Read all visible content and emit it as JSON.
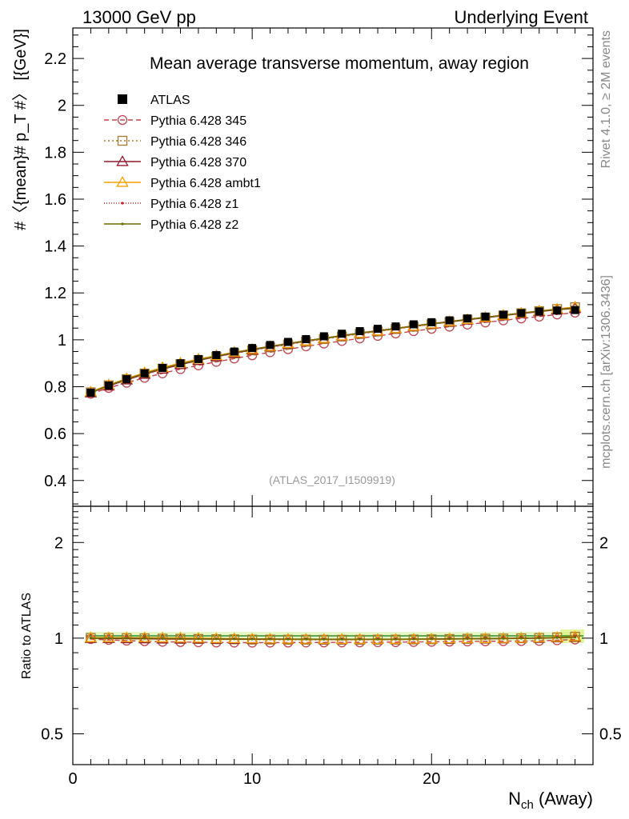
{
  "header": {
    "left": "13000 GeV pp",
    "right": "Underlying Event"
  },
  "side_labels": {
    "top": "Rivet 4.1.0, ≥ 2M events",
    "bottom": "mcplots.cern.ch [arXiv:1306.3436]"
  },
  "chart_data": {
    "type": "line",
    "title": "Mean average transverse momentum, away region",
    "watermark": "(ATLAS_2017_I1509919)",
    "xlabel": "N_ch (Away)",
    "ylabel": "#〈{mean}# p_T #〉 [{GeV}]",
    "ratio_ylabel": "Ratio to ATLAS",
    "xlim": [
      0,
      29
    ],
    "ylim": [
      0.29,
      2.33
    ],
    "ratio_ylim": [
      0.4,
      2.6
    ],
    "x_ticks": [
      0,
      10,
      20
    ],
    "y_ticks": [
      0.4,
      0.6,
      0.8,
      1,
      1.2,
      1.4,
      1.6,
      1.8,
      2,
      2.2
    ],
    "ratio_ticks": [
      0.5,
      1,
      2
    ],
    "x": [
      1,
      2,
      3,
      4,
      5,
      6,
      7,
      8,
      9,
      10,
      11,
      12,
      13,
      14,
      15,
      16,
      17,
      18,
      19,
      20,
      21,
      22,
      23,
      24,
      25,
      26,
      27,
      28
    ],
    "reference": {
      "name": "ATLAS",
      "values": [
        0.775,
        0.805,
        0.832,
        0.857,
        0.88,
        0.9,
        0.918,
        0.935,
        0.95,
        0.965,
        0.978,
        0.991,
        1.003,
        1.015,
        1.026,
        1.037,
        1.047,
        1.057,
        1.066,
        1.075,
        1.083,
        1.091,
        1.099,
        1.107,
        1.114,
        1.121,
        1.125,
        1.127
      ],
      "marker": "filled-square",
      "color": "#000000"
    },
    "series": [
      {
        "name": "Pythia 6.428 345",
        "color": "#c2444f",
        "dash": "6,4",
        "marker": "open-circle",
        "values": [
          0.77,
          0.795,
          0.817,
          0.838,
          0.857,
          0.875,
          0.891,
          0.906,
          0.92,
          0.934,
          0.947,
          0.96,
          0.972,
          0.984,
          0.995,
          1.006,
          1.017,
          1.027,
          1.037,
          1.047,
          1.056,
          1.065,
          1.074,
          1.083,
          1.091,
          1.099,
          1.108,
          1.116
        ]
      },
      {
        "name": "Pythia 6.428 346",
        "color": "#a6782a",
        "dash": "2,3",
        "marker": "open-square",
        "values": [
          0.776,
          0.806,
          0.832,
          0.856,
          0.877,
          0.896,
          0.913,
          0.928,
          0.942,
          0.955,
          0.968,
          0.98,
          0.992,
          1.003,
          1.014,
          1.025,
          1.036,
          1.046,
          1.056,
          1.066,
          1.076,
          1.086,
          1.095,
          1.104,
          1.113,
          1.122,
          1.131,
          1.139
        ]
      },
      {
        "name": "Pythia 6.428 370",
        "color": "#8e1a2b",
        "dash": "",
        "marker": "open-triangle",
        "values": [
          0.774,
          0.803,
          0.829,
          0.853,
          0.875,
          0.894,
          0.912,
          0.928,
          0.943,
          0.957,
          0.97,
          0.982,
          0.994,
          1.005,
          1.016,
          1.027,
          1.037,
          1.047,
          1.057,
          1.067,
          1.076,
          1.085,
          1.094,
          1.103,
          1.112,
          1.12,
          1.128,
          1.134
        ]
      },
      {
        "name": "Pythia 6.428 ambt1",
        "color": "#f5a000",
        "dash": "",
        "marker": "open-triangle",
        "values": [
          0.778,
          0.808,
          0.835,
          0.86,
          0.882,
          0.901,
          0.918,
          0.933,
          0.947,
          0.96,
          0.972,
          0.984,
          0.995,
          1.006,
          1.017,
          1.028,
          1.038,
          1.048,
          1.058,
          1.068,
          1.078,
          1.087,
          1.096,
          1.105,
          1.114,
          1.123,
          1.132,
          1.14
        ]
      },
      {
        "name": "Pythia 6.428 z1",
        "color": "#d42020",
        "dash": "1,2",
        "marker": "dot",
        "values": [
          0.776,
          0.806,
          0.833,
          0.857,
          0.879,
          0.898,
          0.915,
          0.931,
          0.946,
          0.96,
          0.973,
          0.985,
          0.997,
          1.008,
          1.019,
          1.03,
          1.04,
          1.05,
          1.06,
          1.07,
          1.079,
          1.088,
          1.097,
          1.106,
          1.115,
          1.123,
          1.131,
          1.138
        ]
      },
      {
        "name": "Pythia 6.428 z2",
        "color": "#6b6b00",
        "dash": "",
        "marker": "dot",
        "values": [
          0.775,
          0.805,
          0.832,
          0.856,
          0.878,
          0.897,
          0.914,
          0.93,
          0.945,
          0.959,
          0.972,
          0.984,
          0.996,
          1.007,
          1.018,
          1.029,
          1.039,
          1.049,
          1.059,
          1.069,
          1.078,
          1.087,
          1.096,
          1.105,
          1.114,
          1.122,
          1.13,
          1.136
        ]
      }
    ]
  }
}
